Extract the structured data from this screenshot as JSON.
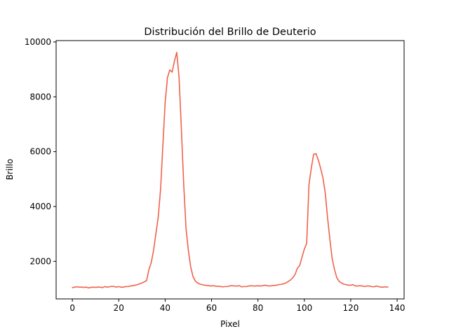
{
  "chart_data": {
    "type": "line",
    "title": "Distribución del Brillo de Deuterio",
    "xlabel": "Pixel",
    "ylabel": "Brillo",
    "xlim": [
      -7,
      143
    ],
    "ylim": [
      630,
      10050
    ],
    "xticks": [
      0,
      20,
      40,
      60,
      80,
      100,
      120,
      140
    ],
    "yticks": [
      2000,
      4000,
      6000,
      8000,
      10000
    ],
    "grid": false,
    "series": [
      {
        "color": "#f0624a",
        "x": [
          0,
          1,
          2,
          3,
          4,
          5,
          6,
          7,
          8,
          9,
          10,
          11,
          12,
          13,
          14,
          15,
          16,
          17,
          18,
          19,
          20,
          21,
          22,
          23,
          24,
          25,
          26,
          27,
          28,
          29,
          30,
          31,
          32,
          33,
          34,
          35,
          36,
          37,
          38,
          39,
          40,
          41,
          42,
          43,
          44,
          45,
          46,
          47,
          48,
          49,
          50,
          51,
          52,
          53,
          54,
          55,
          56,
          57,
          58,
          59,
          60,
          61,
          62,
          63,
          64,
          65,
          66,
          67,
          68,
          69,
          70,
          71,
          72,
          73,
          74,
          75,
          76,
          77,
          78,
          79,
          80,
          81,
          82,
          83,
          84,
          85,
          86,
          87,
          88,
          89,
          90,
          91,
          92,
          93,
          94,
          95,
          96,
          97,
          98,
          99,
          100,
          101,
          102,
          103,
          104,
          105,
          106,
          107,
          108,
          109,
          110,
          111,
          112,
          113,
          114,
          115,
          116,
          117,
          118,
          119,
          120,
          121,
          122,
          123,
          124,
          125,
          126,
          127,
          128,
          129,
          130,
          131,
          132,
          133,
          134,
          135,
          136
        ],
        "y": [
          1040,
          1060,
          1070,
          1060,
          1060,
          1050,
          1060,
          1030,
          1050,
          1060,
          1050,
          1060,
          1060,
          1040,
          1080,
          1060,
          1070,
          1090,
          1080,
          1060,
          1080,
          1060,
          1060,
          1080,
          1080,
          1100,
          1110,
          1130,
          1150,
          1180,
          1210,
          1250,
          1300,
          1700,
          1950,
          2400,
          3000,
          3600,
          4600,
          6200,
          7800,
          8700,
          8980,
          8900,
          9300,
          9620,
          8700,
          6800,
          4800,
          3200,
          2400,
          1800,
          1450,
          1280,
          1210,
          1170,
          1150,
          1130,
          1120,
          1110,
          1100,
          1110,
          1090,
          1090,
          1080,
          1070,
          1080,
          1080,
          1110,
          1110,
          1100,
          1100,
          1110,
          1070,
          1080,
          1080,
          1100,
          1110,
          1100,
          1100,
          1110,
          1100,
          1110,
          1130,
          1110,
          1100,
          1110,
          1120,
          1130,
          1150,
          1160,
          1180,
          1210,
          1260,
          1320,
          1400,
          1520,
          1750,
          1850,
          2150,
          2450,
          2650,
          4800,
          5400,
          5900,
          5930,
          5700,
          5400,
          5050,
          4500,
          3600,
          2800,
          2100,
          1700,
          1400,
          1270,
          1210,
          1170,
          1150,
          1130,
          1130,
          1150,
          1100,
          1100,
          1110,
          1100,
          1080,
          1100,
          1100,
          1080,
          1070,
          1100,
          1080,
          1060,
          1060,
          1070,
          1060
        ]
      }
    ]
  }
}
